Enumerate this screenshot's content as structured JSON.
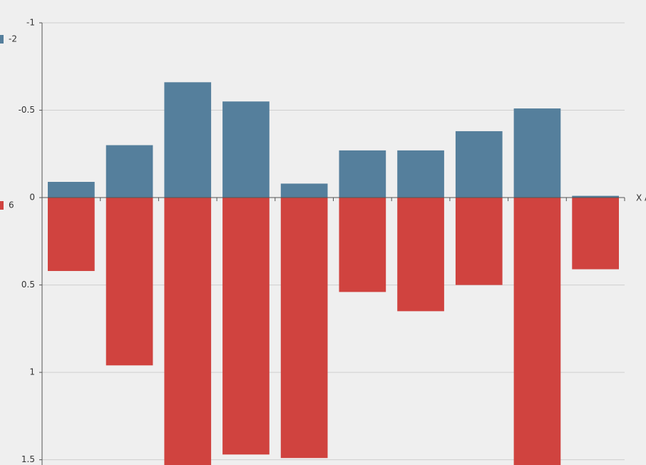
{
  "chart_data": {
    "type": "bar",
    "x_label": "X A",
    "categories": [
      null,
      null,
      null,
      null,
      null,
      null,
      null,
      null,
      null,
      null
    ],
    "series": [
      {
        "name": "-2",
        "color": "#557f9c",
        "values": [
          -0.09,
          -0.3,
          -0.66,
          -0.55,
          -0.08,
          -0.27,
          -0.27,
          -0.38,
          -0.51,
          -0.01
        ]
      },
      {
        "name": "6",
        "color": "#d0433f",
        "values": [
          0.42,
          0.96,
          1.6,
          1.47,
          1.49,
          0.54,
          0.65,
          0.5,
          1.6,
          0.41
        ]
      }
    ],
    "ylim": [
      -1,
      1.53
    ],
    "yticks": [
      -1,
      -0.5,
      0,
      0.5,
      1,
      1.5
    ],
    "y_inverted": true,
    "grid": true
  }
}
